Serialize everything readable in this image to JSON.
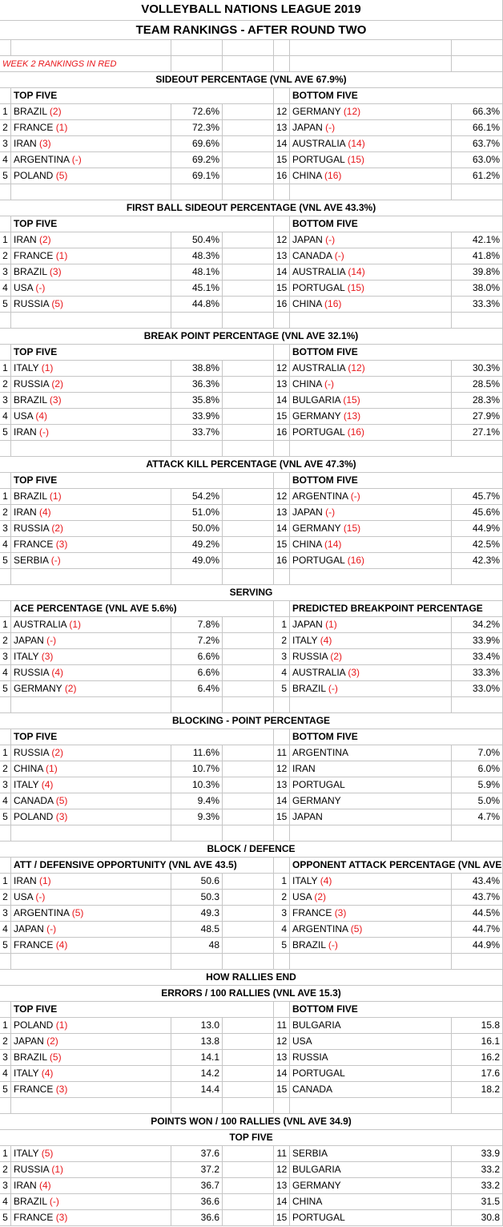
{
  "title": "VOLLEYBALL NATIONS LEAGUE 2019",
  "subtitle": "TEAM RANKINGS - AFTER ROUND TWO",
  "note": "WEEK 2 RANKINGS IN RED",
  "sections": [
    {
      "headers": [
        "SIDEOUT PERCENTAGE (VNL AVE 67.9%)"
      ],
      "left_title": "TOP FIVE",
      "right_title": "BOTTOM FIVE",
      "rows": [
        {
          "left": {
            "rank": 1,
            "team": "BRAZIL",
            "prev": "(2)",
            "value": "72.6%"
          },
          "right": {
            "rank": 12,
            "team": "GERMANY",
            "prev": "(12)",
            "value": "66.3%"
          }
        },
        {
          "left": {
            "rank": 2,
            "team": "FRANCE",
            "prev": "(1)",
            "value": "72.3%"
          },
          "right": {
            "rank": 13,
            "team": "JAPAN",
            "prev": "(-)",
            "value": "66.1%"
          }
        },
        {
          "left": {
            "rank": 3,
            "team": "IRAN",
            "prev": "(3)",
            "value": "69.6%"
          },
          "right": {
            "rank": 14,
            "team": "AUSTRALIA",
            "prev": "(14)",
            "value": "63.7%"
          }
        },
        {
          "left": {
            "rank": 4,
            "team": "ARGENTINA",
            "prev": "(-)",
            "value": "69.2%"
          },
          "right": {
            "rank": 15,
            "team": "PORTUGAL",
            "prev": "(15)",
            "value": "63.0%"
          }
        },
        {
          "left": {
            "rank": 5,
            "team": "POLAND",
            "prev": "(5)",
            "value": "69.1%"
          },
          "right": {
            "rank": 16,
            "team": "CHINA",
            "prev": "(16)",
            "value": "61.2%"
          }
        }
      ]
    },
    {
      "headers": [
        "FIRST BALL SIDEOUT PERCENTAGE (VNL AVE 43.3%)"
      ],
      "left_title": "TOP FIVE",
      "right_title": "BOTTOM FIVE",
      "rows": [
        {
          "left": {
            "rank": 1,
            "team": "IRAN",
            "prev": "(2)",
            "value": "50.4%"
          },
          "right": {
            "rank": 12,
            "team": "JAPAN",
            "prev": "(-)",
            "value": "42.1%"
          }
        },
        {
          "left": {
            "rank": 2,
            "team": "FRANCE",
            "prev": "(1)",
            "value": "48.3%"
          },
          "right": {
            "rank": 13,
            "team": "CANADA",
            "prev": "(-)",
            "value": "41.8%"
          }
        },
        {
          "left": {
            "rank": 3,
            "team": "BRAZIL",
            "prev": "(3)",
            "value": "48.1%"
          },
          "right": {
            "rank": 14,
            "team": "AUSTRALIA",
            "prev": "(14)",
            "value": "39.8%"
          }
        },
        {
          "left": {
            "rank": 4,
            "team": "USA",
            "prev": "(-)",
            "value": "45.1%"
          },
          "right": {
            "rank": 15,
            "team": "PORTUGAL",
            "prev": "(15)",
            "value": "38.0%"
          }
        },
        {
          "left": {
            "rank": 5,
            "team": "RUSSIA",
            "prev": "(5)",
            "value": "44.8%"
          },
          "right": {
            "rank": 16,
            "team": "CHINA",
            "prev": "(16)",
            "value": "33.3%"
          }
        }
      ]
    },
    {
      "headers": [
        "BREAK POINT PERCENTAGE (VNL AVE 32.1%)"
      ],
      "left_title": "TOP FIVE",
      "right_title": "BOTTOM FIVE",
      "rows": [
        {
          "left": {
            "rank": 1,
            "team": "ITALY",
            "prev": "(1)",
            "value": "38.8%"
          },
          "right": {
            "rank": 12,
            "team": "AUSTRALIA",
            "prev": "(12)",
            "value": "30.3%"
          }
        },
        {
          "left": {
            "rank": 2,
            "team": "RUSSIA",
            "prev": "(2)",
            "value": "36.3%"
          },
          "right": {
            "rank": 13,
            "team": "CHINA",
            "prev": "(-)",
            "value": "28.5%"
          }
        },
        {
          "left": {
            "rank": 3,
            "team": "BRAZIL",
            "prev": "(3)",
            "value": "35.8%"
          },
          "right": {
            "rank": 14,
            "team": "BULGARIA",
            "prev": "(15)",
            "value": "28.3%"
          }
        },
        {
          "left": {
            "rank": 4,
            "team": "USA",
            "prev": "(4)",
            "value": "33.9%"
          },
          "right": {
            "rank": 15,
            "team": "GERMANY",
            "prev": "(13)",
            "value": "27.9%"
          }
        },
        {
          "left": {
            "rank": 5,
            "team": "IRAN",
            "prev": "(-)",
            "value": "33.7%"
          },
          "right": {
            "rank": 16,
            "team": "PORTUGAL",
            "prev": "(16)",
            "value": "27.1%"
          }
        }
      ]
    },
    {
      "headers": [
        "ATTACK KILL PERCENTAGE (VNL AVE 47.3%)"
      ],
      "left_title": "TOP FIVE",
      "right_title": "BOTTOM FIVE",
      "rows": [
        {
          "left": {
            "rank": 1,
            "team": "BRAZIL",
            "prev": "(1)",
            "value": "54.2%"
          },
          "right": {
            "rank": 12,
            "team": "ARGENTINA",
            "prev": "(-)",
            "value": "45.7%"
          }
        },
        {
          "left": {
            "rank": 2,
            "team": "IRAN",
            "prev": "(4)",
            "value": "51.0%"
          },
          "right": {
            "rank": 13,
            "team": "JAPAN",
            "prev": "(-)",
            "value": "45.6%"
          }
        },
        {
          "left": {
            "rank": 3,
            "team": "RUSSIA",
            "prev": "(2)",
            "value": "50.0%"
          },
          "right": {
            "rank": 14,
            "team": "GERMANY",
            "prev": "(15)",
            "value": "44.9%"
          }
        },
        {
          "left": {
            "rank": 4,
            "team": "FRANCE",
            "prev": "(3)",
            "value": "49.2%"
          },
          "right": {
            "rank": 15,
            "team": "CHINA",
            "prev": "(14)",
            "value": "42.5%"
          }
        },
        {
          "left": {
            "rank": 5,
            "team": "SERBIA",
            "prev": "(-)",
            "value": "49.0%"
          },
          "right": {
            "rank": 16,
            "team": "PORTUGAL",
            "prev": "(16)",
            "value": "42.3%"
          }
        }
      ]
    },
    {
      "headers": [
        "SERVING"
      ],
      "left_title": "ACE PERCENTAGE (VNL AVE 5.6%)",
      "right_title": "PREDICTED BREAKPOINT PERCENTAGE",
      "rows": [
        {
          "left": {
            "rank": 1,
            "team": "AUSTRALIA",
            "prev": "(1)",
            "value": "7.8%"
          },
          "right": {
            "rank": 1,
            "team": "JAPAN",
            "prev": "(1)",
            "value": "34.2%"
          }
        },
        {
          "left": {
            "rank": 2,
            "team": "JAPAN",
            "prev": "(-)",
            "value": "7.2%"
          },
          "right": {
            "rank": 2,
            "team": "ITALY",
            "prev": "(4)",
            "value": "33.9%"
          }
        },
        {
          "left": {
            "rank": 3,
            "team": "ITALY",
            "prev": "(3)",
            "value": "6.6%"
          },
          "right": {
            "rank": 3,
            "team": "RUSSIA",
            "prev": "(2)",
            "value": "33.4%"
          }
        },
        {
          "left": {
            "rank": 4,
            "team": "RUSSIA",
            "prev": "(4)",
            "value": "6.6%"
          },
          "right": {
            "rank": 4,
            "team": "AUSTRALIA",
            "prev": "(3)",
            "value": "33.3%"
          }
        },
        {
          "left": {
            "rank": 5,
            "team": "GERMANY",
            "prev": "(2)",
            "value": "6.4%"
          },
          "right": {
            "rank": 5,
            "team": "BRAZIL",
            "prev": "(-)",
            "value": "33.0%"
          }
        }
      ]
    },
    {
      "headers": [
        "BLOCKING - POINT PERCENTAGE"
      ],
      "left_title": "TOP FIVE",
      "right_title": "BOTTOM FIVE",
      "rows": [
        {
          "left": {
            "rank": 1,
            "team": "RUSSIA",
            "prev": "(2)",
            "value": "11.6%"
          },
          "right": {
            "rank": 11,
            "team": "ARGENTINA",
            "value": "7.0%"
          }
        },
        {
          "left": {
            "rank": 2,
            "team": "CHINA",
            "prev": "(1)",
            "value": "10.7%"
          },
          "right": {
            "rank": 12,
            "team": "IRAN",
            "value": "6.0%"
          }
        },
        {
          "left": {
            "rank": 3,
            "team": "ITALY",
            "prev": "(4)",
            "value": "10.3%"
          },
          "right": {
            "rank": 13,
            "team": "PORTUGAL",
            "value": "5.9%"
          }
        },
        {
          "left": {
            "rank": 4,
            "team": "CANADA",
            "prev": "(5)",
            "value": "9.4%"
          },
          "right": {
            "rank": 14,
            "team": "GERMANY",
            "value": "5.0%"
          }
        },
        {
          "left": {
            "rank": 5,
            "team": "POLAND",
            "prev": "(3)",
            "value": "9.3%"
          },
          "right": {
            "rank": 15,
            "team": "JAPAN",
            "value": "4.7%"
          }
        }
      ]
    },
    {
      "headers": [
        "BLOCK / DEFENCE"
      ],
      "left_title": "ATT / DEFENSIVE OPPORTUNITY (VNL AVE 43.5)",
      "right_title": "OPPONENT ATTACK PERCENTAGE (VNL AVE",
      "rows": [
        {
          "left": {
            "rank": 1,
            "team": "IRAN",
            "prev": "(1)",
            "value": "50.6"
          },
          "right": {
            "rank": 1,
            "team": "ITALY",
            "prev": "(4)",
            "value": "43.4%"
          }
        },
        {
          "left": {
            "rank": 2,
            "team": "USA",
            "prev": "(-)",
            "value": "50.3"
          },
          "right": {
            "rank": 2,
            "team": "USA",
            "prev": "(2)",
            "value": "43.7%"
          }
        },
        {
          "left": {
            "rank": 3,
            "team": "ARGENTINA",
            "prev": "(5)",
            "value": "49.3"
          },
          "right": {
            "rank": 3,
            "team": "FRANCE",
            "prev": "(3)",
            "value": "44.5%"
          }
        },
        {
          "left": {
            "rank": 4,
            "team": "JAPAN",
            "prev": "(-)",
            "value": "48.5"
          },
          "right": {
            "rank": 4,
            "team": "ARGENTINA",
            "prev": "(5)",
            "value": "44.7%"
          }
        },
        {
          "left": {
            "rank": 5,
            "team": "FRANCE",
            "prev": "(4)",
            "value": "48"
          },
          "right": {
            "rank": 5,
            "team": "BRAZIL",
            "prev": "(-)",
            "value": "44.9%"
          }
        }
      ]
    },
    {
      "headers": [
        "HOW RALLIES END",
        "ERRORS / 100 RALLIES (VNL AVE 15.3)"
      ],
      "left_title": "TOP FIVE",
      "right_title": "BOTTOM FIVE",
      "rows": [
        {
          "left": {
            "rank": 1,
            "team": "POLAND",
            "prev": "(1)",
            "value": "13.0"
          },
          "right": {
            "rank": 11,
            "team": "BULGARIA",
            "value": "15.8"
          }
        },
        {
          "left": {
            "rank": 2,
            "team": "JAPAN",
            "prev": "(2)",
            "value": "13.8"
          },
          "right": {
            "rank": 12,
            "team": "USA",
            "value": "16.1"
          }
        },
        {
          "left": {
            "rank": 3,
            "team": "BRAZIL",
            "prev": "(5)",
            "value": "14.1"
          },
          "right": {
            "rank": 13,
            "team": "RUSSIA",
            "value": "16.2"
          }
        },
        {
          "left": {
            "rank": 4,
            "team": "ITALY",
            "prev": "(4)",
            "value": "14.2"
          },
          "right": {
            "rank": 14,
            "team": "PORTUGAL",
            "value": "17.6"
          }
        },
        {
          "left": {
            "rank": 5,
            "team": "FRANCE",
            "prev": "(3)",
            "value": "14.4"
          },
          "right": {
            "rank": 15,
            "team": "CANADA",
            "value": "18.2"
          }
        }
      ]
    },
    {
      "headers": [
        "POINTS WON / 100 RALLIES (VNL AVE 34.9)",
        "TOP FIVE"
      ],
      "rows": [
        {
          "left": {
            "rank": 1,
            "team": "ITALY",
            "prev": "(5)",
            "value": "37.6"
          },
          "right": {
            "rank": 11,
            "team": "SERBIA",
            "value": "33.9"
          }
        },
        {
          "left": {
            "rank": 2,
            "team": "RUSSIA",
            "prev": "(1)",
            "value": "37.2"
          },
          "right": {
            "rank": 12,
            "team": "BULGARIA",
            "value": "33.2"
          }
        },
        {
          "left": {
            "rank": 3,
            "team": "IRAN",
            "prev": "(4)",
            "value": "36.7"
          },
          "right": {
            "rank": 13,
            "team": "GERMANY",
            "value": "33.2"
          }
        },
        {
          "left": {
            "rank": 4,
            "team": "BRAZIL",
            "prev": "(-)",
            "value": "36.6"
          },
          "right": {
            "rank": 14,
            "team": "CHINA",
            "value": "31.5"
          }
        },
        {
          "left": {
            "rank": 5,
            "team": "FRANCE",
            "prev": "(3)",
            "value": "36.6"
          },
          "right": {
            "rank": 15,
            "team": "PORTUGAL",
            "value": "30.8"
          }
        }
      ]
    }
  ]
}
